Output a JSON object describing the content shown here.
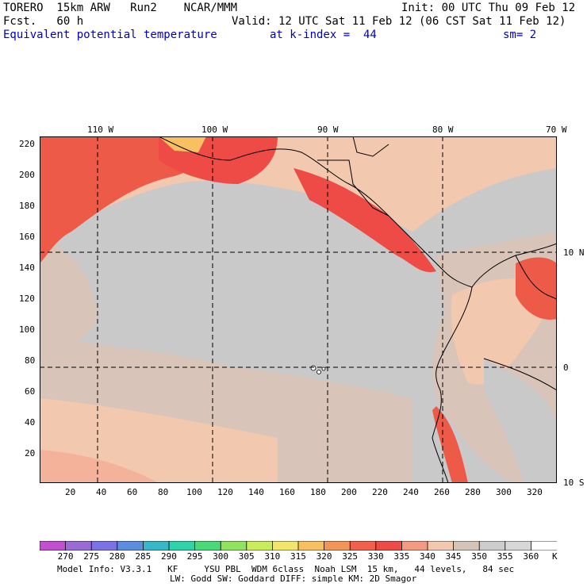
{
  "header": {
    "model": "TORERO  15km ARW   Run2    NCAR/MMM",
    "init": "Init: 00 UTC Thu 09 Feb 12",
    "fcst": "Fcst.   60 h",
    "valid": "Valid: 12 UTC Sat 11 Feb 12 (06 CST Sat 11 Feb 12)",
    "field": "Equivalent potential temperature",
    "kindex": "at k-index =  44",
    "smooth": "sm= 2"
  },
  "map": {
    "lon_labels": [
      "110 W",
      "100 W",
      "90 W",
      "80 W",
      "70 W"
    ],
    "lat_labels": [
      "10 N",
      "0",
      "10 S"
    ],
    "y_ticks": [
      "220",
      "200",
      "180",
      "160",
      "140",
      "120",
      "100",
      "80",
      "60",
      "40",
      "20"
    ],
    "x_ticks": [
      "20",
      "40",
      "60",
      "80",
      "100",
      "120",
      "140",
      "160",
      "180",
      "200",
      "220",
      "240",
      "260",
      "280",
      "300",
      "320"
    ]
  },
  "colorbar": {
    "levels": [
      "270",
      "275",
      "280",
      "285",
      "290",
      "295",
      "300",
      "305",
      "310",
      "315",
      "320",
      "325",
      "330",
      "335",
      "340",
      "345",
      "350",
      "355",
      "360"
    ],
    "unit": "K",
    "colors": [
      "#c24fd0",
      "#9a6ad6",
      "#7b72e6",
      "#5c8ee0",
      "#37b8c8",
      "#2ed3a8",
      "#49d97a",
      "#8fe35e",
      "#c8ec5a",
      "#f3e46a",
      "#f8c060",
      "#f39458",
      "#f2604a",
      "#ee4a46",
      "#f49a80",
      "#f2c8ae",
      "#d4c4b8",
      "#cccccc",
      "#d8d8d8",
      "#ffffff"
    ]
  },
  "footer": {
    "line1": "Model Info: V3.3.1   KF     YSU PBL  WDM 6class  Noah LSM  15 km,   44 levels,   84 sec",
    "line2": "LW: Godd SW: Goddard DIFF: simple KM: 2D Smagor"
  }
}
